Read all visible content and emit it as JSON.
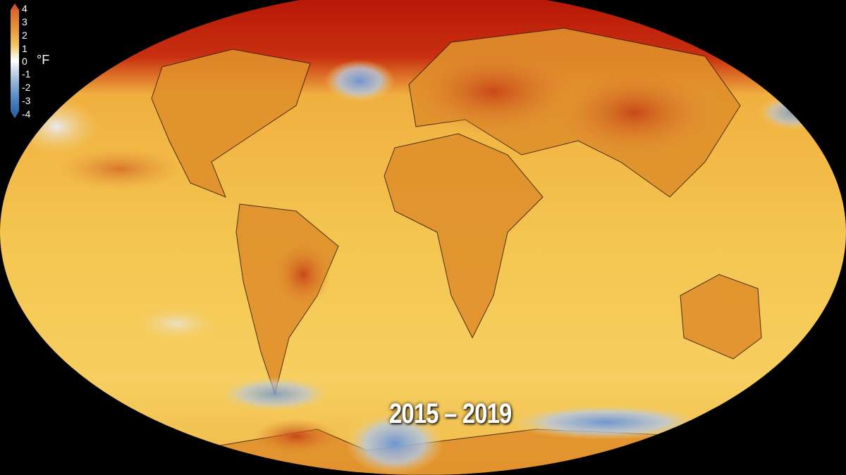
{
  "map": {
    "type": "global temperature anomaly map",
    "projection": "elliptical",
    "period_label": "2015 – 2019",
    "colorbar": {
      "unit": "°F",
      "ticks": [
        "4",
        "3",
        "2",
        "1",
        "0",
        "-1",
        "-2",
        "-3",
        "-4"
      ],
      "range": [
        -4,
        4
      ],
      "colors": {
        "warm": "#d0582a",
        "mid_warm": "#f2c660",
        "neutral": "#ffffff",
        "cool": "#2e6aa8"
      }
    }
  }
}
